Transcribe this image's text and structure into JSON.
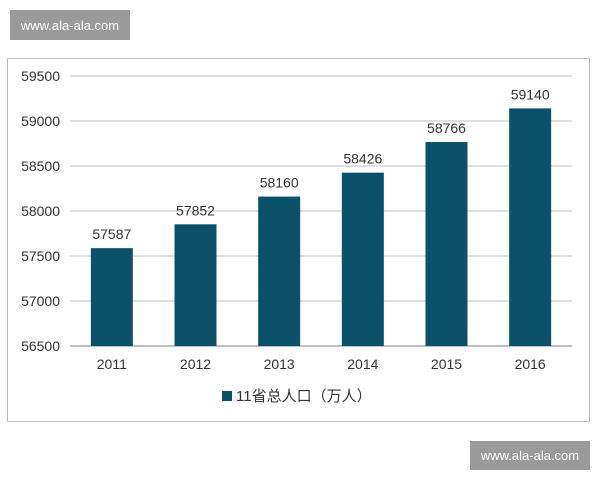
{
  "watermarks": {
    "top": "www.ala-ala.com",
    "bottom": "www.ala-ala.com"
  },
  "colors": {
    "bar": "#0b5169",
    "grid": "#bfbfbf",
    "axis": "#7f7f7f"
  },
  "chart_data": {
    "type": "bar",
    "title": "",
    "xlabel": "",
    "ylabel": "",
    "categories": [
      "2011",
      "2012",
      "2013",
      "2014",
      "2015",
      "2016"
    ],
    "series": [
      {
        "name": "11省总人口（万人）",
        "values": [
          57587,
          57852,
          58160,
          58426,
          58766,
          59140
        ]
      }
    ],
    "ylim": [
      56500,
      59500
    ],
    "yticks": [
      56500,
      57000,
      57500,
      58000,
      58500,
      59000,
      59500
    ],
    "grid": true,
    "legend": "bottom-center",
    "data_labels": true
  }
}
